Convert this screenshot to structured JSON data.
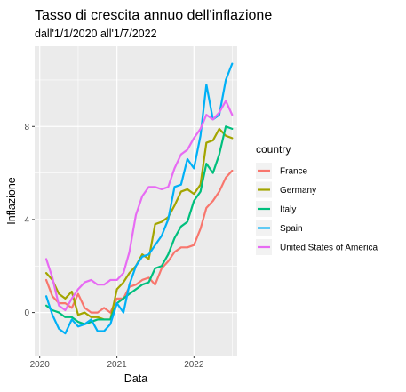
{
  "chart_data": {
    "type": "line",
    "title": "Tasso di crescita annuo dell'inflazione",
    "subtitle": "dall'1/1/2020 all'1/7/2022",
    "xlabel": "Data",
    "ylabel": "Inflazione",
    "x_ticks": [
      "2020",
      "2021",
      "2022"
    ],
    "y_ticks": [
      0,
      4,
      8
    ],
    "xlim": [
      "2019-12-08",
      "2022-07-25"
    ],
    "ylim": [
      -1.85,
      11.45
    ],
    "grid": true,
    "legend": {
      "title": "country",
      "position": "right"
    },
    "x": [
      "2020-02-01",
      "2020-03-01",
      "2020-04-01",
      "2020-05-01",
      "2020-06-01",
      "2020-07-01",
      "2020-08-01",
      "2020-09-01",
      "2020-10-01",
      "2020-11-01",
      "2020-12-01",
      "2021-01-01",
      "2021-02-01",
      "2021-03-01",
      "2021-04-01",
      "2021-05-01",
      "2021-06-01",
      "2021-07-01",
      "2021-08-01",
      "2021-09-01",
      "2021-10-01",
      "2021-11-01",
      "2021-12-01",
      "2022-01-01",
      "2022-02-01",
      "2022-03-01",
      "2022-04-01",
      "2022-05-01",
      "2022-06-01",
      "2022-07-01"
    ],
    "series": [
      {
        "name": "France",
        "color": "#F8766D",
        "values": [
          1.4,
          0.7,
          0.4,
          0.4,
          0.2,
          0.8,
          0.2,
          0.0,
          0.0,
          0.2,
          0.0,
          0.6,
          0.6,
          1.1,
          1.2,
          1.4,
          1.5,
          1.2,
          1.9,
          2.2,
          2.6,
          2.8,
          2.8,
          2.9,
          3.6,
          4.5,
          4.8,
          5.2,
          5.8,
          6.1
        ]
      },
      {
        "name": "Germany",
        "color": "#A3A500",
        "values": [
          1.7,
          1.4,
          0.8,
          0.6,
          0.9,
          -0.1,
          0.0,
          -0.2,
          -0.2,
          -0.3,
          -0.3,
          1.0,
          1.3,
          1.7,
          2.0,
          2.5,
          2.3,
          3.8,
          3.9,
          4.1,
          4.6,
          5.2,
          5.3,
          5.1,
          5.5,
          7.3,
          7.4,
          7.9,
          7.6,
          7.5
        ]
      },
      {
        "name": "Italy",
        "color": "#00BF7D",
        "values": [
          0.3,
          0.1,
          0.0,
          -0.2,
          -0.2,
          -0.4,
          -0.5,
          -0.4,
          -0.3,
          -0.3,
          -0.3,
          0.4,
          0.6,
          0.8,
          1.0,
          1.2,
          1.3,
          1.9,
          2.0,
          2.5,
          3.2,
          3.7,
          3.9,
          4.8,
          5.2,
          6.4,
          6.0,
          6.8,
          8.0,
          7.9
        ]
      },
      {
        "name": "Spain",
        "color": "#00B0F6",
        "values": [
          0.7,
          -0.1,
          -0.7,
          -0.9,
          -0.3,
          -0.6,
          -0.5,
          -0.3,
          -0.8,
          -0.8,
          -0.5,
          0.4,
          0.0,
          1.2,
          2.0,
          2.4,
          2.5,
          2.9,
          3.3,
          4.0,
          5.4,
          5.5,
          6.6,
          6.2,
          7.6,
          9.8,
          8.3,
          8.5,
          10.0,
          10.7
        ]
      },
      {
        "name": "United States of America",
        "color": "#E76BF3",
        "values": [
          2.3,
          1.5,
          0.3,
          0.1,
          0.6,
          1.0,
          1.3,
          1.4,
          1.2,
          1.2,
          1.4,
          1.4,
          1.7,
          2.6,
          4.2,
          5.0,
          5.4,
          5.4,
          5.3,
          5.4,
          6.2,
          6.8,
          7.0,
          7.5,
          7.9,
          8.5,
          8.3,
          8.6,
          9.1,
          8.5
        ]
      }
    ]
  }
}
